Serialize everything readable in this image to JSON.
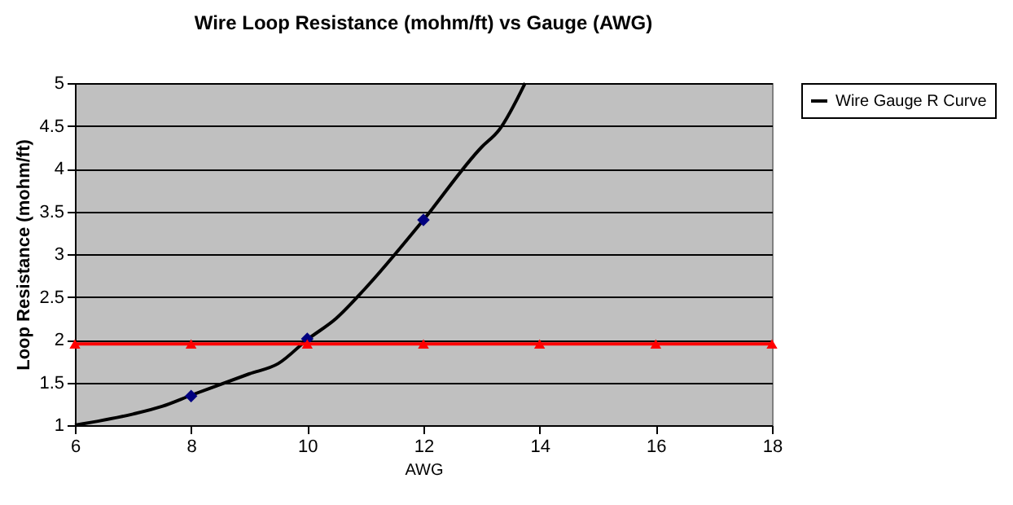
{
  "chart_data": {
    "type": "line",
    "title": "Wire Loop Resistance (mohm/ft) vs Gauge (AWG)",
    "xlabel": "AWG",
    "ylabel": "Loop Resistance (mohm/ft)",
    "xlim": [
      6,
      18
    ],
    "xticks": [
      6,
      8,
      10,
      12,
      14,
      16,
      18
    ],
    "ylim": [
      1,
      5
    ],
    "yticks": [
      1,
      1.5,
      2,
      2.5,
      3,
      3.5,
      4,
      4.5,
      5
    ],
    "grid": "y",
    "legend": "right",
    "series": [
      {
        "name": "Wire Gauge R Curve",
        "color": "#000000",
        "type": "line",
        "marker": "none",
        "x": [
          6,
          7,
          7.5,
          8,
          9,
          9.5,
          10,
          10.5,
          11,
          12,
          13,
          13.3,
          13.75
        ],
        "values": [
          1.0,
          1.13,
          1.22,
          1.35,
          1.6,
          1.72,
          2.0,
          2.25,
          2.6,
          3.4,
          4.25,
          4.45,
          5.0
        ]
      },
      {
        "color": "#000080",
        "type": "scatter",
        "marker": "diamond",
        "x": [
          8,
          10,
          12
        ],
        "values": [
          1.34,
          2.01,
          3.4
        ]
      },
      {
        "color": "#ff0000",
        "type": "line",
        "marker": "triangle",
        "x": [
          6,
          8,
          10,
          12,
          14,
          16,
          18
        ],
        "values": [
          1.95,
          1.95,
          1.95,
          1.95,
          1.95,
          1.95,
          1.95
        ]
      }
    ]
  }
}
